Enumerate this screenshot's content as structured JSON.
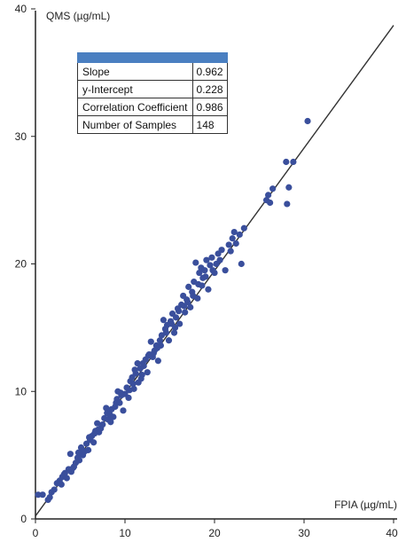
{
  "chart_data": {
    "type": "scatter",
    "title": "",
    "xlabel": "FPIA (µg/mL)",
    "ylabel": "QMS (µg/mL)",
    "xlim": [
      0,
      40
    ],
    "ylim": [
      0,
      40
    ],
    "x_ticks": [
      "0",
      "10",
      "20",
      "30",
      "40"
    ],
    "y_ticks": [
      "0",
      "10",
      "20",
      "30",
      "40"
    ],
    "grid": false,
    "point_color": "#3a4f9c",
    "line_color": "#333333",
    "regression": {
      "slope": 0.962,
      "intercept": 0.228
    },
    "stats_table": {
      "header_color": "#4a7fc1",
      "rows": [
        {
          "label": "Slope",
          "value": "0.962"
        },
        {
          "label": "y-Intercept",
          "value": "0.228"
        },
        {
          "label": "Correlation Coefficient",
          "value": "0.986"
        },
        {
          "label": "Number of Samples",
          "value": "148"
        }
      ]
    },
    "points": [
      [
        0.3,
        1.9
      ],
      [
        0.8,
        1.9
      ],
      [
        1.4,
        1.5
      ],
      [
        1.8,
        2.1
      ],
      [
        2.1,
        2.3
      ],
      [
        2.4,
        2.8
      ],
      [
        2.7,
        3.0
      ],
      [
        3.0,
        3.3
      ],
      [
        3.3,
        3.6
      ],
      [
        3.5,
        3.2
      ],
      [
        3.7,
        3.9
      ],
      [
        3.9,
        5.1
      ],
      [
        4.0,
        3.7
      ],
      [
        4.3,
        4.1
      ],
      [
        4.5,
        4.4
      ],
      [
        4.7,
        4.8
      ],
      [
        4.9,
        4.6
      ],
      [
        5.1,
        5.6
      ],
      [
        5.3,
        5.0
      ],
      [
        5.5,
        5.3
      ],
      [
        5.7,
        5.9
      ],
      [
        5.9,
        5.4
      ],
      [
        6.1,
        6.2
      ],
      [
        6.3,
        6.5
      ],
      [
        6.5,
        6.0
      ],
      [
        6.7,
        6.9
      ],
      [
        6.9,
        7.5
      ],
      [
        7.1,
        6.8
      ],
      [
        7.3,
        7.1
      ],
      [
        7.5,
        7.4
      ],
      [
        7.7,
        7.9
      ],
      [
        7.9,
        8.7
      ],
      [
        8.1,
        7.8
      ],
      [
        8.3,
        8.2
      ],
      [
        8.5,
        8.6
      ],
      [
        8.7,
        8.0
      ],
      [
        8.9,
        8.8
      ],
      [
        9.1,
        9.4
      ],
      [
        9.2,
        10.0
      ],
      [
        9.4,
        9.1
      ],
      [
        9.6,
        9.7
      ],
      [
        9.8,
        8.5
      ],
      [
        10.0,
        9.8
      ],
      [
        10.2,
        10.3
      ],
      [
        10.4,
        9.5
      ],
      [
        10.6,
        10.8
      ],
      [
        10.8,
        11.1
      ],
      [
        11.0,
        10.2
      ],
      [
        11.2,
        11.4
      ],
      [
        11.4,
        12.2
      ],
      [
        11.5,
        10.7
      ],
      [
        11.7,
        11.8
      ],
      [
        11.9,
        11.3
      ],
      [
        12.1,
        12.0
      ],
      [
        12.3,
        12.5
      ],
      [
        12.5,
        11.5
      ],
      [
        12.7,
        12.9
      ],
      [
        12.9,
        13.9
      ],
      [
        13.1,
        12.7
      ],
      [
        13.3,
        13.2
      ],
      [
        13.5,
        13.6
      ],
      [
        13.7,
        12.4
      ],
      [
        13.9,
        14.0
      ],
      [
        14.1,
        14.4
      ],
      [
        14.3,
        15.6
      ],
      [
        14.5,
        14.9
      ],
      [
        14.7,
        15.2
      ],
      [
        14.9,
        14.0
      ],
      [
        15.1,
        15.5
      ],
      [
        15.3,
        16.1
      ],
      [
        15.5,
        14.6
      ],
      [
        15.7,
        15.8
      ],
      [
        15.9,
        16.5
      ],
      [
        16.1,
        15.3
      ],
      [
        16.3,
        16.8
      ],
      [
        16.5,
        17.5
      ],
      [
        16.7,
        16.2
      ],
      [
        16.9,
        17.2
      ],
      [
        17.1,
        18.2
      ],
      [
        17.3,
        16.6
      ],
      [
        17.5,
        17.8
      ],
      [
        17.7,
        18.6
      ],
      [
        17.9,
        20.1
      ],
      [
        18.1,
        17.3
      ],
      [
        18.3,
        19.3
      ],
      [
        18.5,
        19.7
      ],
      [
        18.7,
        18.9
      ],
      [
        18.9,
        19.5
      ],
      [
        19.1,
        20.3
      ],
      [
        19.3,
        18.0
      ],
      [
        19.5,
        19.9
      ],
      [
        19.7,
        20.5
      ],
      [
        20.0,
        19.3
      ],
      [
        20.4,
        20.8
      ],
      [
        20.8,
        21.1
      ],
      [
        21.2,
        19.5
      ],
      [
        21.6,
        21.5
      ],
      [
        22.0,
        22.0
      ],
      [
        22.4,
        21.6
      ],
      [
        22.8,
        22.3
      ],
      [
        23.0,
        20.0
      ],
      [
        23.3,
        22.8
      ],
      [
        25.8,
        25.0
      ],
      [
        26.0,
        25.4
      ],
      [
        26.2,
        24.8
      ],
      [
        26.5,
        25.9
      ],
      [
        28.0,
        28.0
      ],
      [
        28.1,
        24.7
      ],
      [
        28.3,
        26.0
      ],
      [
        28.8,
        28.0
      ],
      [
        30.4,
        31.2
      ],
      [
        8.4,
        7.6
      ],
      [
        10.9,
        10.6
      ],
      [
        12.0,
        12.2
      ],
      [
        14.0,
        13.6
      ],
      [
        16.0,
        16.3
      ],
      [
        18.2,
        18.4
      ],
      [
        20.2,
        20.0
      ],
      [
        21.8,
        21.0
      ],
      [
        6.0,
        6.4
      ],
      [
        4.2,
        4.0
      ],
      [
        2.9,
        2.7
      ],
      [
        9.5,
        9.9
      ],
      [
        11.8,
        11.0
      ],
      [
        13.6,
        13.4
      ],
      [
        15.6,
        15.0
      ],
      [
        17.0,
        17.0
      ],
      [
        19.0,
        19.0
      ],
      [
        7.0,
        7.0
      ],
      [
        5.2,
        5.4
      ],
      [
        3.2,
        3.5
      ],
      [
        1.6,
        1.7
      ],
      [
        10.5,
        10.1
      ],
      [
        12.6,
        12.8
      ],
      [
        14.6,
        14.6
      ],
      [
        16.6,
        16.7
      ],
      [
        18.6,
        18.3
      ],
      [
        20.6,
        20.3
      ],
      [
        22.2,
        22.5
      ],
      [
        8.0,
        8.3
      ],
      [
        6.6,
        6.7
      ],
      [
        4.8,
        5.2
      ],
      [
        9.0,
        9.1
      ],
      [
        11.1,
        11.7
      ],
      [
        13.2,
        13.0
      ],
      [
        15.2,
        15.3
      ],
      [
        17.6,
        17.5
      ],
      [
        19.8,
        19.5
      ]
    ]
  }
}
